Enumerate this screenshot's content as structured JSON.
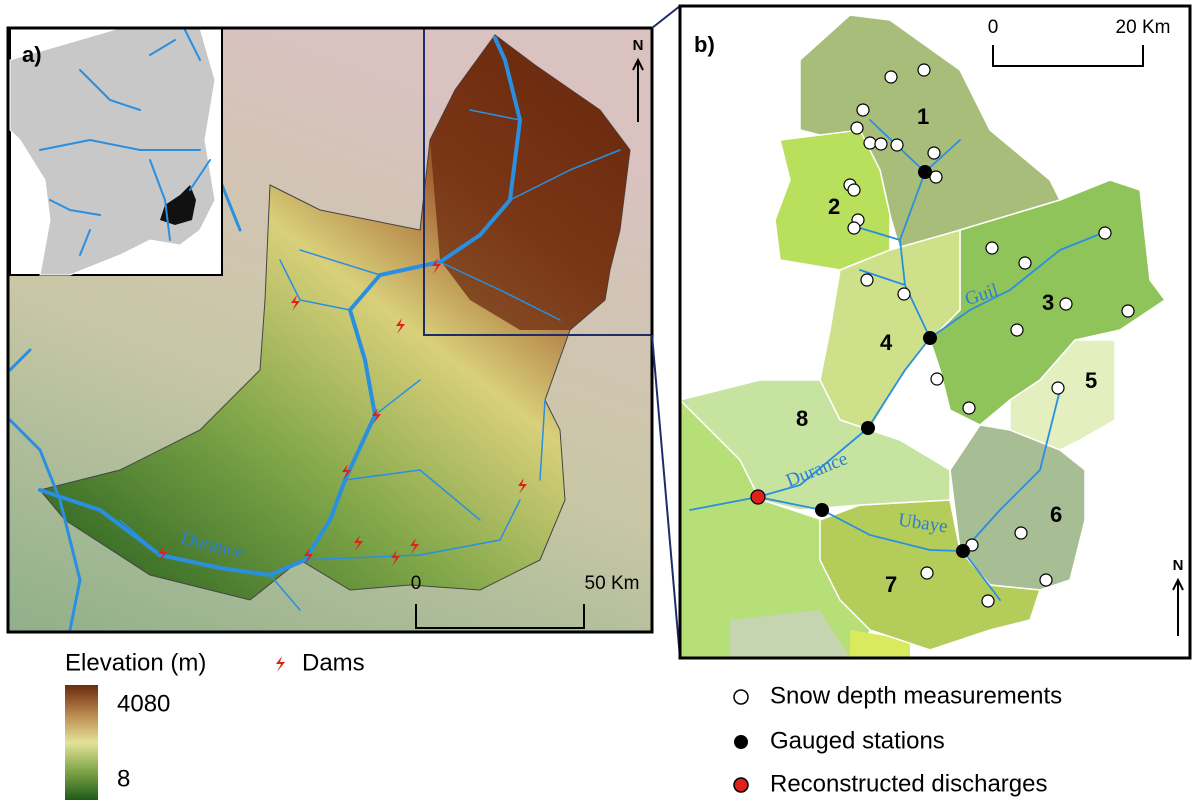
{
  "panel_a": {
    "label": "a)",
    "north": "N",
    "scale_start": "0",
    "scale_end": "50 Km",
    "river": "Durance"
  },
  "legend_a": {
    "elevation_title": "Elevation (m)",
    "dams": "Dams",
    "max": "4080",
    "min": "8"
  },
  "panel_b": {
    "label": "b)",
    "north": "N",
    "scale_start": "0",
    "scale_end": "20 Km",
    "subbasins": [
      "1",
      "2",
      "3",
      "4",
      "5",
      "6",
      "7",
      "8"
    ],
    "rivers": [
      "Guil",
      "Durance",
      "Ubaye"
    ]
  },
  "legend_b": {
    "items": [
      "Snow depth measurements",
      "Gauged stations",
      "Reconstructed discharges"
    ]
  }
}
